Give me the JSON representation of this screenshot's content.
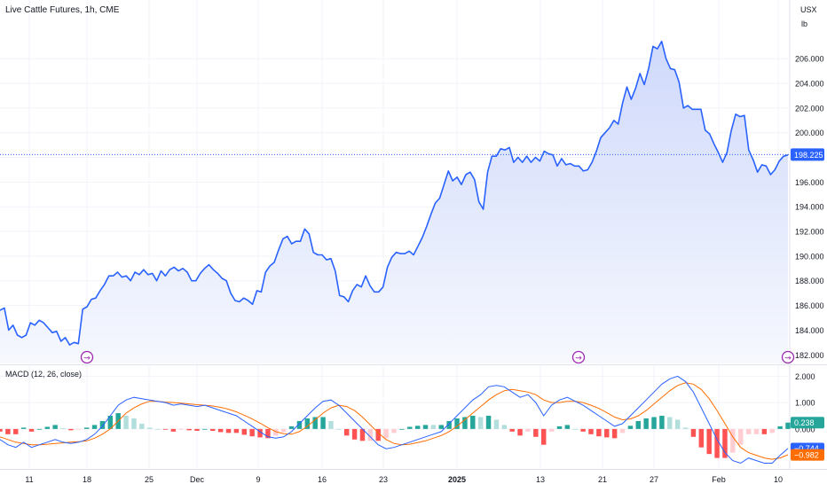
{
  "chart_data": [
    {
      "type": "area",
      "title": "Live Cattle Futures, 1h, CME",
      "currency": "USX",
      "unit": "lb",
      "y_ticks": [
        182,
        184,
        186,
        188,
        190,
        192,
        194,
        196,
        198,
        200,
        202,
        204,
        206
      ],
      "y_tick_labels": [
        "182.000",
        "184.000",
        "186.000",
        "188.000",
        "190.000",
        "192.000",
        "194.000",
        "196.000",
        "198.000",
        "200.000",
        "202.000",
        "204.000",
        "206.000"
      ],
      "ylim": [
        181.3,
        208.6
      ],
      "x_labels": [
        "11",
        "18",
        "25",
        "Dec",
        "9",
        "16",
        "23",
        "2025",
        "13",
        "21",
        "27",
        "Feb",
        "10"
      ],
      "last_price": 198.225,
      "last_price_label": "198.225",
      "colors": {
        "line": "#2962ff",
        "fill_top": "#cfd9fb",
        "fill_bottom": "#f6f8fe",
        "last_price": "#2962ff"
      },
      "series": [
        {
          "values": [
            185.6,
            185.8,
            184.0,
            184.4,
            183.6,
            183.4,
            183.6,
            184.6,
            184.4,
            184.8,
            184.6,
            184.2,
            183.8,
            183.9,
            183.1,
            183.4,
            182.8,
            183.0,
            182.9,
            185.7,
            185.9,
            186.5,
            186.6,
            187.2,
            187.7,
            188.4,
            188.4,
            188.7,
            188.3,
            188.4,
            188.0,
            188.7,
            188.5,
            188.9,
            188.5,
            188.6,
            188.0,
            188.8,
            188.4,
            188.9,
            189.1,
            188.8,
            189.0,
            188.7,
            188.0,
            188.0,
            188.6,
            189.0,
            189.3,
            188.9,
            188.6,
            188.2,
            188.0,
            187.0,
            186.4,
            186.3,
            186.6,
            186.4,
            186.1,
            187.2,
            187.1,
            188.7,
            189.2,
            189.5,
            190.5,
            191.4,
            191.6,
            191.0,
            191.2,
            191.2,
            192.2,
            191.8,
            190.3,
            190.1,
            190.1,
            189.7,
            189.8,
            188.8,
            186.8,
            186.7,
            186.3,
            187.2,
            187.7,
            187.5,
            188.4,
            187.6,
            187.1,
            187.1,
            187.5,
            189.1,
            189.9,
            190.3,
            190.2,
            190.2,
            190.4,
            190.1,
            190.8,
            191.5,
            192.4,
            193.4,
            194.3,
            194.7,
            195.8,
            196.9,
            196.1,
            196.4,
            195.8,
            196.6,
            196.8,
            196.2,
            194.4,
            193.8,
            196.8,
            198.1,
            198.1,
            198.7,
            198.6,
            198.8,
            197.6,
            198.0,
            197.6,
            198.1,
            197.6,
            198.0,
            197.7,
            198.5,
            198.3,
            198.2,
            197.3,
            197.9,
            197.4,
            197.5,
            197.3,
            197.3,
            196.9,
            197.0,
            197.6,
            198.5,
            199.6,
            200.0,
            200.4,
            201.0,
            200.7,
            202.4,
            203.7,
            202.7,
            203.6,
            204.8,
            203.9,
            205.2,
            207.0,
            206.8,
            207.4,
            206.0,
            205.2,
            205.1,
            204.1,
            202.0,
            202.2,
            201.9,
            201.9,
            201.9,
            200.2,
            199.9,
            199.1,
            198.4,
            197.6,
            198.4,
            200.2,
            201.5,
            201.3,
            201.4,
            198.6,
            197.8,
            196.8,
            197.4,
            197.3,
            196.6,
            197.0,
            197.7,
            198.1,
            198.2
          ]
        }
      ]
    },
    {
      "type": "bar",
      "title": "MACD (12, 26, close)",
      "y_ticks": [
        0,
        1,
        2
      ],
      "y_tick_labels": [
        "0.000",
        "1.000",
        "2.000"
      ],
      "ylim": [
        -1.45,
        2.35
      ],
      "last_values": {
        "histogram": 0.238,
        "macd": -0.744,
        "signal": -0.982
      },
      "last_labels": {
        "histogram": "0.238",
        "macd": "−0.744",
        "signal": "−0.982"
      },
      "colors": {
        "macd": "#2962ff",
        "signal": "#ff6d00",
        "hist_pos_strong": "#26a69a",
        "hist_pos_weak": "#b2dfdb",
        "hist_neg_strong": "#ff5252",
        "hist_neg_weak": "#ffcdd2"
      },
      "macd": [
        -0.4,
        -0.6,
        -0.7,
        -0.5,
        -0.7,
        -0.6,
        -0.5,
        -0.4,
        -0.5,
        -0.55,
        -0.5,
        -0.4,
        -0.2,
        0.1,
        0.5,
        0.9,
        1.1,
        1.2,
        1.15,
        1.1,
        1.05,
        1.0,
        0.9,
        0.95,
        0.9,
        0.85,
        0.9,
        0.8,
        0.7,
        0.6,
        0.5,
        0.3,
        0.1,
        -0.1,
        -0.3,
        -0.35,
        -0.3,
        -0.1,
        0.2,
        0.5,
        0.8,
        1.05,
        1.1,
        0.9,
        0.6,
        0.3,
        0.0,
        -0.3,
        -0.6,
        -0.75,
        -0.7,
        -0.6,
        -0.5,
        -0.4,
        -0.3,
        -0.2,
        -0.1,
        0.2,
        0.5,
        0.8,
        1.1,
        1.3,
        1.6,
        1.65,
        1.6,
        1.4,
        1.2,
        1.3,
        1.0,
        0.5,
        0.9,
        1.1,
        1.2,
        1.05,
        0.9,
        0.7,
        0.5,
        0.3,
        0.1,
        0.2,
        0.5,
        0.8,
        1.1,
        1.4,
        1.7,
        1.9,
        2.0,
        1.8,
        1.4,
        0.8,
        0.2,
        -0.4,
        -0.9,
        -1.2,
        -1.3,
        -1.1,
        -1.2,
        -1.3,
        -1.3,
        -1.0,
        -0.74
      ],
      "signal": [
        -0.3,
        -0.4,
        -0.5,
        -0.55,
        -0.6,
        -0.6,
        -0.58,
        -0.55,
        -0.53,
        -0.5,
        -0.48,
        -0.45,
        -0.35,
        -0.2,
        0.0,
        0.3,
        0.6,
        0.8,
        0.95,
        1.05,
        1.05,
        1.02,
        1.0,
        0.98,
        0.95,
        0.92,
        0.9,
        0.87,
        0.82,
        0.75,
        0.65,
        0.52,
        0.38,
        0.22,
        0.05,
        -0.1,
        -0.18,
        -0.2,
        -0.1,
        0.1,
        0.35,
        0.6,
        0.8,
        0.9,
        0.85,
        0.7,
        0.45,
        0.15,
        -0.15,
        -0.4,
        -0.55,
        -0.6,
        -0.58,
        -0.52,
        -0.45,
        -0.35,
        -0.25,
        -0.1,
        0.1,
        0.35,
        0.6,
        0.85,
        1.1,
        1.3,
        1.45,
        1.5,
        1.45,
        1.4,
        1.3,
        1.1,
        1.0,
        1.0,
        1.05,
        1.05,
        1.0,
        0.9,
        0.78,
        0.62,
        0.45,
        0.35,
        0.38,
        0.5,
        0.7,
        0.95,
        1.2,
        1.45,
        1.65,
        1.75,
        1.7,
        1.5,
        1.15,
        0.7,
        0.2,
        -0.3,
        -0.7,
        -0.9,
        -1.0,
        -1.1,
        -1.15,
        -1.1,
        -0.98
      ]
    }
  ],
  "event_markers": [
    {
      "symbol": "⇝"
    },
    {
      "symbol": "⇝"
    },
    {
      "symbol": "⇝"
    }
  ]
}
